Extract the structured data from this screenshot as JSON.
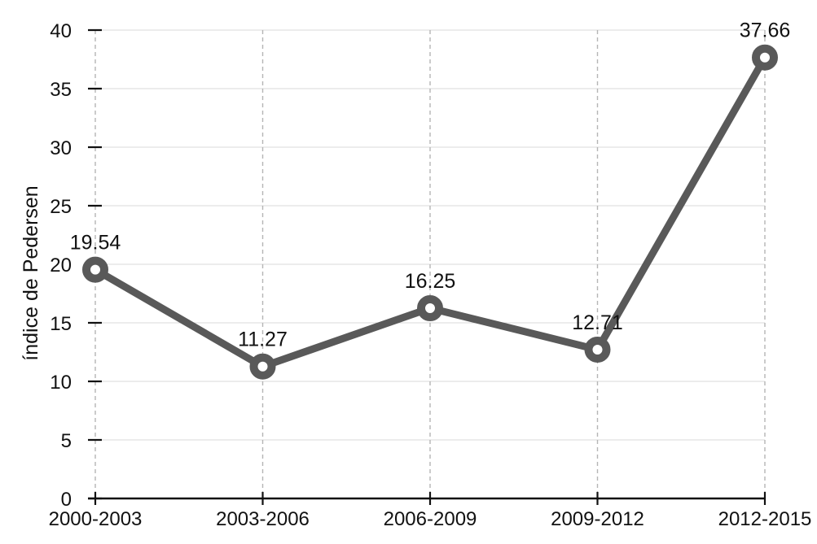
{
  "chart_data": {
    "type": "line",
    "title": "",
    "xlabel": "",
    "ylabel": "índice de Pedersen",
    "categories": [
      "2000-2003",
      "2003-2006",
      "2006-2009",
      "2009-2012",
      "2012-2015"
    ],
    "series": [
      {
        "name": "índice de Pedersen",
        "values": [
          19.54,
          11.27,
          16.25,
          12.71,
          37.66
        ]
      }
    ],
    "point_labels": [
      "19.54",
      "11.27",
      "16.25",
      "12.71",
      "37.66"
    ],
    "yticks": [
      0,
      5,
      10,
      15,
      20,
      25,
      30,
      35,
      40
    ],
    "ytick_labels": [
      "0",
      "5",
      "10",
      "15",
      "20",
      "25",
      "30",
      "35",
      "40"
    ],
    "ylim": [
      0,
      40
    ],
    "legend": "none",
    "grid": {
      "horizontal": "solid-light",
      "vertical": "dashed-light"
    },
    "colors": {
      "line": "#595959",
      "marker_fill": "#ffffff",
      "marker_stroke": "#595959",
      "grid_horizontal": "#d9d9d9",
      "grid_vertical": "#b5b5b5",
      "axis": "#111111",
      "text": "#111111"
    }
  }
}
